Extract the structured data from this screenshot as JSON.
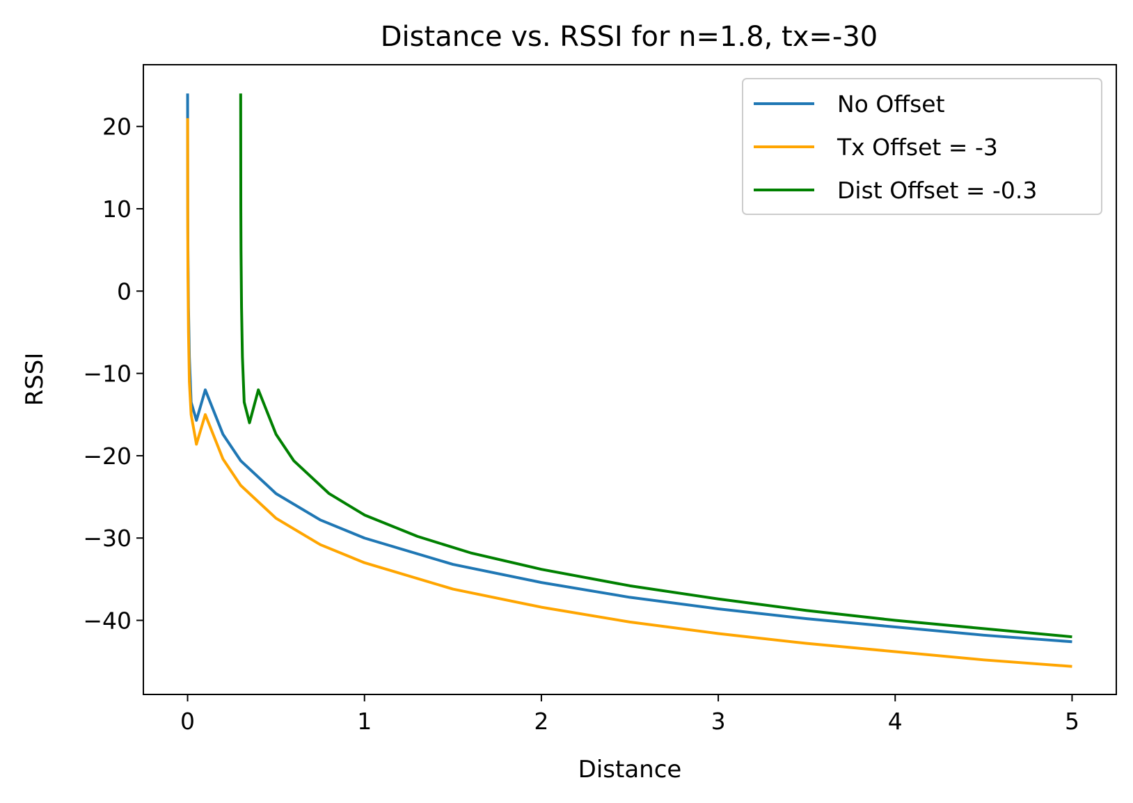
{
  "chart_data": {
    "type": "line",
    "title": "Distance vs. RSSI for n=1.8, tx=-30",
    "xlabel": "Distance",
    "ylabel": "RSSI",
    "xlim": [
      -0.25,
      5.25
    ],
    "ylim": [
      -49,
      27.5
    ],
    "xticks": [
      0,
      1,
      2,
      3,
      4,
      5
    ],
    "yticks": [
      20,
      10,
      0,
      -10,
      -20,
      -30,
      -40
    ],
    "xtick_labels": [
      "0",
      "1",
      "2",
      "3",
      "4",
      "5"
    ],
    "ytick_labels": [
      "20",
      "10",
      "0",
      "−10",
      "−20",
      "−30",
      "−40"
    ],
    "grid": false,
    "legend_position": "top-right",
    "series": [
      {
        "name": "No Offset",
        "color": "#1f77b4",
        "x": [
          0.0001,
          0.0003,
          0.001,
          0.002,
          0.005,
          0.01,
          0.02,
          0.05,
          0.1,
          0.2,
          0.3,
          0.5,
          0.75,
          1.0,
          1.5,
          2.0,
          2.5,
          3.0,
          3.5,
          4.0,
          4.5,
          5.0
        ],
        "y": [
          24,
          20,
          10,
          5,
          -2,
          -8,
          -13.5,
          -15.7,
          -12,
          -17.4,
          -20.6,
          -24.6,
          -27.8,
          -30,
          -33.2,
          -35.4,
          -37.2,
          -38.6,
          -39.8,
          -40.8,
          -41.8,
          -42.6
        ]
      },
      {
        "name": "Tx Offset = -3",
        "color": "#ffa500",
        "x": [
          0.0003,
          0.001,
          0.002,
          0.005,
          0.01,
          0.02,
          0.05,
          0.1,
          0.2,
          0.3,
          0.5,
          0.75,
          1.0,
          1.5,
          2.0,
          2.5,
          3.0,
          3.5,
          4.0,
          4.5,
          5.0
        ],
        "y": [
          21,
          7,
          2,
          -5,
          -11,
          -15,
          -18.6,
          -15,
          -20.4,
          -23.6,
          -27.6,
          -30.8,
          -33,
          -36.2,
          -38.4,
          -40.2,
          -41.6,
          -42.8,
          -43.8,
          -44.8,
          -45.6
        ]
      },
      {
        "name": "Dist Offset = -0.3",
        "color": "#008000",
        "x": [
          0.3001,
          0.3003,
          0.301,
          0.302,
          0.305,
          0.31,
          0.32,
          0.35,
          0.4,
          0.5,
          0.6,
          0.8,
          1.0,
          1.3,
          1.6,
          2.0,
          2.5,
          3.0,
          3.5,
          4.0,
          4.5,
          5.0
        ],
        "y": [
          24,
          20,
          10,
          5,
          -2,
          -8,
          -13.5,
          -16,
          -12,
          -17.4,
          -20.6,
          -24.6,
          -27.2,
          -29.8,
          -31.8,
          -33.8,
          -35.8,
          -37.4,
          -38.8,
          -40.0,
          -41.0,
          -42.0
        ]
      }
    ]
  }
}
